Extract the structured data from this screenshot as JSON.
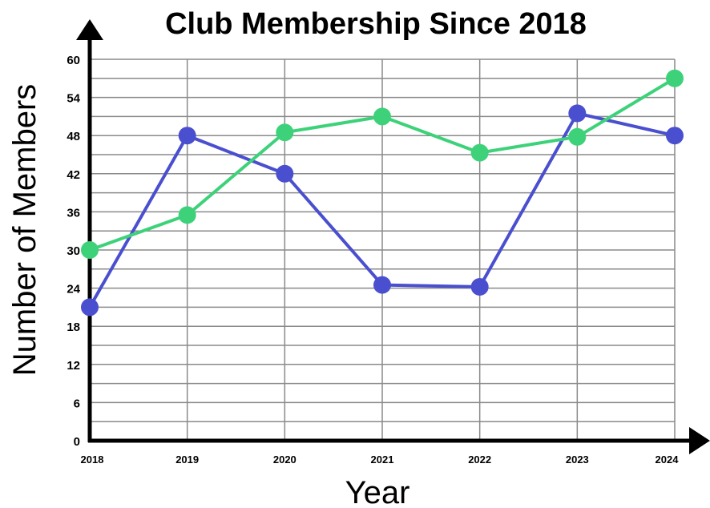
{
  "chart_data": {
    "type": "line",
    "title": "Club Membership Since 2018",
    "xlabel": "Year",
    "ylabel": "Number of Members",
    "categories": [
      "2018",
      "2019",
      "2020",
      "2021",
      "2022",
      "2023",
      "2024"
    ],
    "y_ticks": [
      "0",
      "6",
      "12",
      "18",
      "24",
      "30",
      "36",
      "42",
      "48",
      "54",
      "60"
    ],
    "ylim": [
      0,
      60
    ],
    "grid": true,
    "series": [
      {
        "color": "#4a4fcf",
        "values": [
          21,
          48,
          42,
          24.5,
          24.2,
          51.5,
          48
        ]
      },
      {
        "color": "#3dd27a",
        "values": [
          30,
          35.5,
          48.5,
          51,
          45.3,
          47.8,
          57
        ]
      }
    ]
  }
}
